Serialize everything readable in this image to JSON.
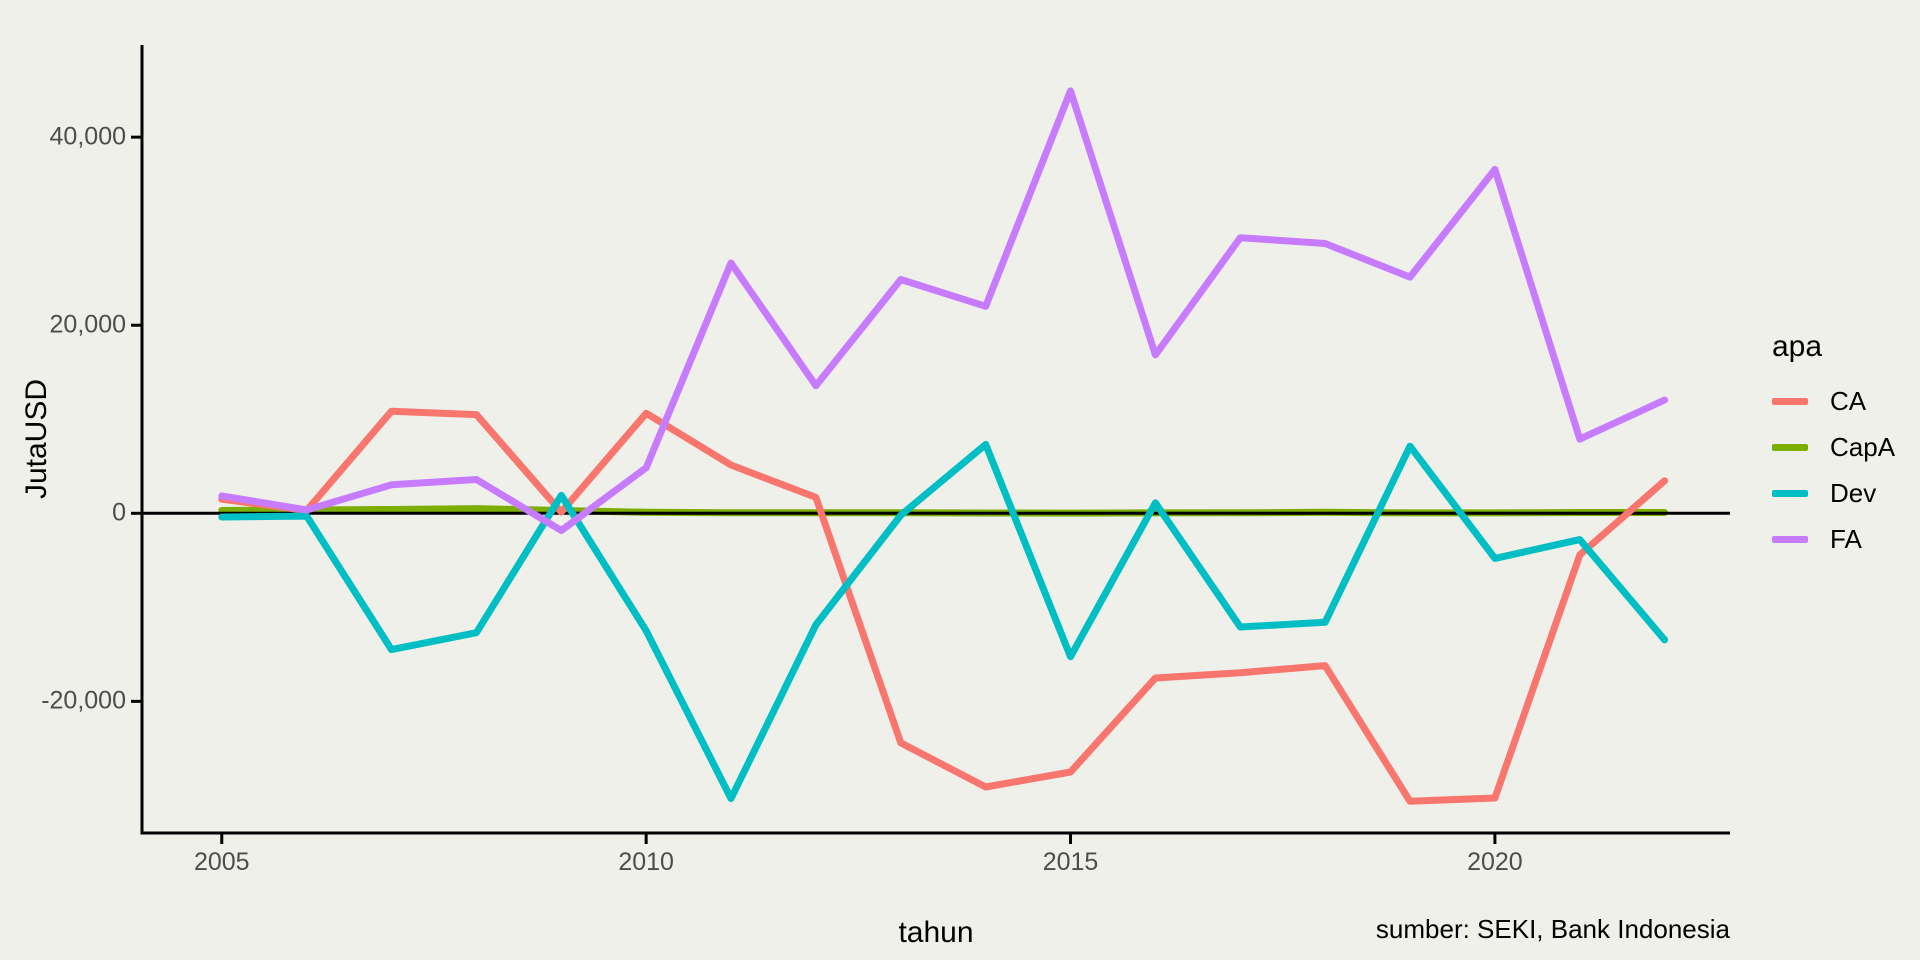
{
  "figure": {
    "caption": "sumber: SEKI, Bank Indonesia",
    "background": "#F0F0EA",
    "axis_color": "#000000",
    "tick_label_color": "#4D4D4D"
  },
  "chart_data": {
    "type": "line",
    "title": "",
    "xlabel": "tahun",
    "ylabel": "JutaUSD",
    "legend": {
      "title": "apa",
      "position": "right"
    },
    "grid": false,
    "zero_line": true,
    "xlim": [
      2004.06,
      2022.77
    ],
    "ylim": [
      -34000,
      49800
    ],
    "x_ticks": {
      "values": [
        2005,
        2010,
        2015,
        2020
      ],
      "labels": [
        "2005",
        "2010",
        "2015",
        "2020"
      ]
    },
    "y_ticks": {
      "values": [
        -20000,
        0,
        20000,
        40000
      ],
      "labels": [
        "-20,000",
        "0",
        "20,000",
        "40,000"
      ]
    },
    "x": [
      2005,
      2006,
      2007,
      2008,
      2009,
      2010,
      2011,
      2012,
      2013,
      2014,
      2015,
      2016,
      2017,
      2018,
      2019,
      2020,
      2021,
      2022
    ],
    "series": [
      {
        "name": "CA",
        "color": "#F8766D",
        "values": [
          1500,
          300,
          10860,
          10490,
          130,
          10630,
          5140,
          1690,
          -24420,
          -29110,
          -27510,
          -17520,
          -16950,
          -16200,
          -30630,
          -30280,
          -4430,
          3460
        ]
      },
      {
        "name": "CapA",
        "color": "#7CAE00",
        "values": [
          300,
          350,
          400,
          500,
          300,
          100,
          50,
          50,
          50,
          30,
          20,
          40,
          50,
          100,
          40,
          40,
          80,
          80
        ]
      },
      {
        "name": "Dev",
        "color": "#00BFC4",
        "values": [
          -400,
          -300,
          -14500,
          -12700,
          1900,
          -12500,
          -30330,
          -11860,
          -200,
          7330,
          -15250,
          1100,
          -12090,
          -11590,
          7130,
          -4800,
          -2800,
          -13460
        ]
      },
      {
        "name": "FA",
        "color": "#C77CFF",
        "values": [
          1850,
          350,
          3030,
          3590,
          -1830,
          4850,
          26620,
          13570,
          24860,
          22010,
          44920,
          16840,
          29310,
          28690,
          25120,
          36570,
          7890,
          12050
        ]
      }
    ]
  }
}
